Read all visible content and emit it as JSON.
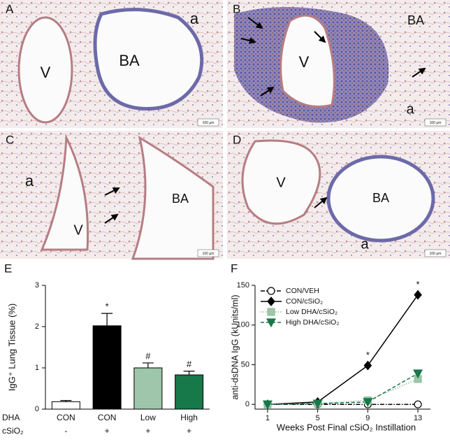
{
  "micrographs": [
    {
      "letter": "A",
      "labels": [
        "V",
        "BA",
        "a"
      ],
      "scale": "100 µm"
    },
    {
      "letter": "B",
      "labels": [
        "V",
        "BA",
        "a"
      ],
      "scale": "100 µm"
    },
    {
      "letter": "C",
      "labels": [
        "a",
        "V",
        "BA"
      ],
      "scale": "100 µm"
    },
    {
      "letter": "D",
      "labels": [
        "V",
        "BA",
        "a"
      ],
      "scale": "100 µm"
    }
  ],
  "chart_data": [
    {
      "type": "bar",
      "panel": "E",
      "ylabel": "IgG⁺ Lung Tissue (%)",
      "row_labels": [
        "DHA",
        "cSiO₂"
      ],
      "categories": [
        "CON",
        "CON",
        "Low",
        "High"
      ],
      "cSiO2": [
        "-",
        "+",
        "+",
        "+"
      ],
      "values": [
        0.18,
        2.02,
        1.0,
        0.83
      ],
      "errors": [
        0.03,
        0.3,
        0.12,
        0.09
      ],
      "markers": [
        null,
        "*",
        "#",
        "#"
      ],
      "colors": [
        "#ffffff",
        "#000000",
        "#9fc5aa",
        "#17784a"
      ],
      "ylim": [
        0,
        3
      ],
      "yticks": [
        0,
        1,
        2,
        3
      ]
    },
    {
      "type": "line",
      "panel": "F",
      "ylabel": "anti-dsDNA IgG (kUnits/ml)",
      "xlabel": "Weeks Post Final cSiO₂ Instillation",
      "x": [
        1,
        5,
        9,
        13
      ],
      "xlim": [
        0,
        14
      ],
      "xticks": [
        1,
        5,
        9,
        13
      ],
      "ylim": [
        -6,
        150
      ],
      "yticks": [
        0,
        50,
        100,
        150
      ],
      "legend": "upper left",
      "series": [
        {
          "name": "CON/VEH",
          "color": "#000000",
          "marker": "circle",
          "fill": "#ffffff",
          "dash": "dashdot",
          "values": [
            0,
            0,
            0,
            0
          ]
        },
        {
          "name": "CON/cSiO₂",
          "color": "#000000",
          "marker": "diamond",
          "fill": "#000000",
          "dash": "solid",
          "values": [
            0,
            3,
            49,
            138
          ],
          "markers": [
            null,
            null,
            "*",
            "*"
          ]
        },
        {
          "name": "Low DHA/cSiO₂",
          "color": "#8fbf9c",
          "marker": "square",
          "fill": "#9fc5aa",
          "dash": "dotted",
          "values": [
            0,
            1,
            5,
            32
          ]
        },
        {
          "name": "High DHA/cSiO₂",
          "color": "#17784a",
          "marker": "triangle",
          "fill": "#17784a",
          "dash": "dashed",
          "values": [
            0,
            1,
            3,
            39
          ]
        }
      ]
    }
  ]
}
